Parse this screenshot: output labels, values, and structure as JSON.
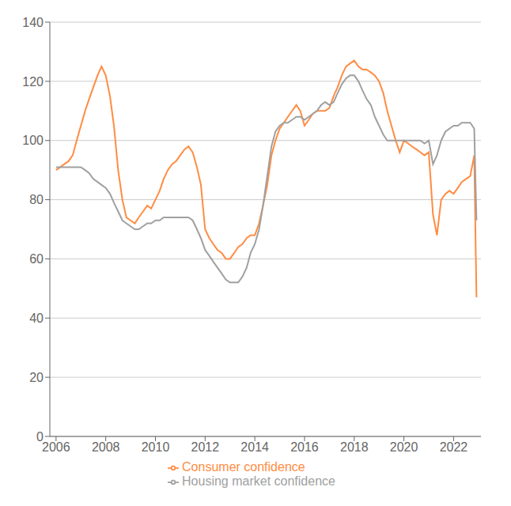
{
  "chart_data": {
    "type": "line",
    "x": [
      2006.0,
      2006.17,
      2006.33,
      2006.5,
      2006.67,
      2006.83,
      2007.0,
      2007.17,
      2007.33,
      2007.5,
      2007.67,
      2007.83,
      2008.0,
      2008.17,
      2008.33,
      2008.5,
      2008.67,
      2008.83,
      2009.0,
      2009.17,
      2009.33,
      2009.5,
      2009.67,
      2009.83,
      2010.0,
      2010.17,
      2010.33,
      2010.5,
      2010.67,
      2010.83,
      2011.0,
      2011.17,
      2011.33,
      2011.5,
      2011.67,
      2011.83,
      2012.0,
      2012.17,
      2012.33,
      2012.5,
      2012.67,
      2012.83,
      2013.0,
      2013.17,
      2013.33,
      2013.5,
      2013.67,
      2013.83,
      2014.0,
      2014.17,
      2014.33,
      2014.5,
      2014.67,
      2014.83,
      2015.0,
      2015.17,
      2015.33,
      2015.5,
      2015.67,
      2015.83,
      2016.0,
      2016.17,
      2016.33,
      2016.5,
      2016.67,
      2016.83,
      2017.0,
      2017.17,
      2017.33,
      2017.5,
      2017.67,
      2017.83,
      2018.0,
      2018.17,
      2018.33,
      2018.5,
      2018.67,
      2018.83,
      2019.0,
      2019.17,
      2019.33,
      2019.5,
      2019.67,
      2019.83,
      2020.0,
      2020.17,
      2020.33,
      2020.5,
      2020.67,
      2020.83,
      2021.0,
      2021.17,
      2021.33,
      2021.5,
      2021.67,
      2021.83,
      2022.0,
      2022.17,
      2022.33,
      2022.5,
      2022.67,
      2022.83,
      2022.92
    ],
    "series": [
      {
        "name": "Consumer confidence",
        "color": "#FF8C42",
        "values": [
          90,
          91,
          92,
          93,
          95,
          100,
          105,
          110,
          114,
          118,
          122,
          125,
          122,
          115,
          105,
          90,
          80,
          74,
          73,
          72,
          74,
          76,
          78,
          77,
          80,
          83,
          87,
          90,
          92,
          93,
          95,
          97,
          98,
          96,
          91,
          85,
          70,
          67,
          65,
          63,
          62,
          60,
          60,
          62,
          64,
          65,
          67,
          68,
          68,
          72,
          78,
          85,
          95,
          100,
          104,
          106,
          108,
          110,
          112,
          110,
          105,
          107,
          109,
          110,
          110,
          110,
          111,
          115,
          118,
          122,
          125,
          126,
          127,
          125,
          124,
          124,
          123,
          122,
          120,
          116,
          110,
          105,
          100,
          96,
          100,
          99,
          98,
          97,
          96,
          95,
          96,
          75,
          68,
          80,
          82,
          83,
          82,
          84,
          86,
          87,
          88,
          95,
          47
        ]
      },
      {
        "name": "Housing market confidence",
        "color": "#A0A0A0",
        "values": [
          91,
          91,
          91,
          91,
          91,
          91,
          91,
          90,
          89,
          87,
          86,
          85,
          84,
          82,
          79,
          76,
          73,
          72,
          71,
          70,
          70,
          71,
          72,
          72,
          73,
          73,
          74,
          74,
          74,
          74,
          74,
          74,
          74,
          73,
          70,
          67,
          63,
          61,
          59,
          57,
          55,
          53,
          52,
          52,
          52,
          54,
          57,
          62,
          65,
          70,
          78,
          88,
          98,
          103,
          105,
          106,
          106,
          107,
          108,
          108,
          107,
          108,
          109,
          110,
          112,
          113,
          112,
          113,
          116,
          119,
          121,
          122,
          122,
          120,
          117,
          114,
          112,
          108,
          105,
          102,
          100,
          100,
          100,
          100,
          100,
          100,
          100,
          100,
          100,
          99,
          100,
          92,
          95,
          100,
          103,
          104,
          105,
          105,
          106,
          106,
          106,
          104,
          73
        ]
      }
    ],
    "xlim": [
      2005.75,
      2023.1
    ],
    "xticks": [
      2006,
      2008,
      2010,
      2012,
      2014,
      2016,
      2018,
      2020,
      2022
    ],
    "ylim": [
      0,
      140
    ],
    "yticks": [
      0,
      20,
      40,
      60,
      80,
      100,
      120,
      140
    ],
    "grid": true,
    "legend": "bottom"
  }
}
